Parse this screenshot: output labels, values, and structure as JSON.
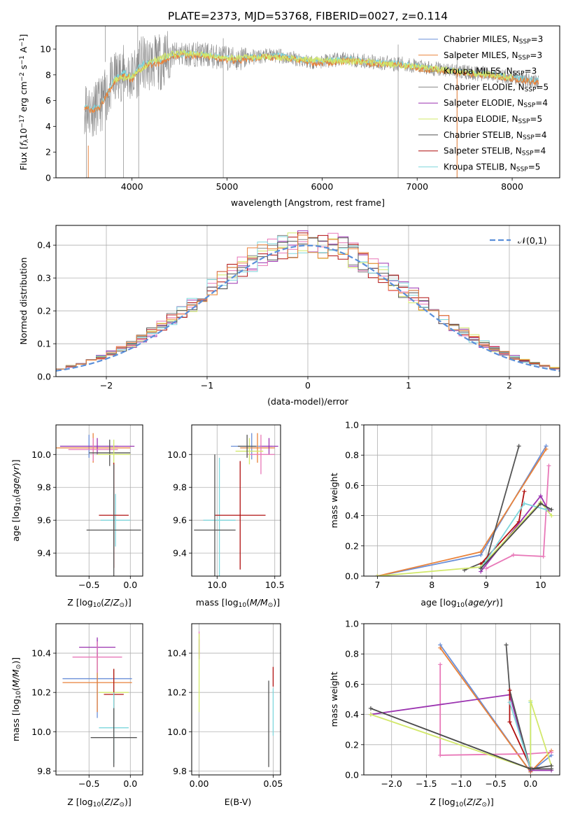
{
  "figure_title": "PLATE=2373, MJD=53768, FIBERID=0027, z=0.114",
  "colors": {
    "Chabrier MILES": "#6a8fd8",
    "Salpeter MILES": "#e9823a",
    "Kroupa MILES": "#c7772f",
    "Chabrier ELODIE": "#888888",
    "Salpeter ELODIE": "#9b33b0",
    "Kroupa ELODIE": "#d2e86a",
    "Chabrier STELIB": "#555555",
    "Salpeter STELIB": "#b01010",
    "Kroupa STELIB": "#7ed6dc",
    "pink": "#e878b8",
    "normal": "#5b8fd9"
  },
  "chart_data": [
    {
      "id": "spectrum",
      "type": "line",
      "xlabel": "wavelength [Angstrom, rest frame]",
      "ylabel": "Flux [f_λ10^-17 erg cm^-2 s^-1 A^-1]",
      "xlim": [
        3200,
        8500
      ],
      "ylim": [
        0,
        11.8
      ],
      "xticks": [
        4000,
        5000,
        6000,
        7000,
        8000
      ],
      "yticks": [
        0,
        2,
        4,
        6,
        8,
        10
      ],
      "legend_position": "right",
      "legend": [
        {
          "label": "Chabrier MILES, N_SSP=3",
          "color": "#6a8fd8"
        },
        {
          "label": "Salpeter MILES, N_SSP=3",
          "color": "#e9823a"
        },
        {
          "label": "Kroupa MILES, N_SSP=3",
          "color": "#c7772f"
        },
        {
          "label": "Chabrier ELODIE, N_SSP=5",
          "color": "#888888"
        },
        {
          "label": "Salpeter ELODIE, N_SSP=4",
          "color": "#9b33b0"
        },
        {
          "label": "Kroupa ELODIE, N_SSP=5",
          "color": "#d2e86a"
        },
        {
          "label": "Chabrier STELIB, N_SSP=4",
          "color": "#555555"
        },
        {
          "label": "Salpeter STELIB, N_SSP=4",
          "color": "#b01010"
        },
        {
          "label": "Kroupa STELIB, N_SSP=5",
          "color": "#7ed6dc"
        }
      ],
      "data_series": {
        "name": "data",
        "color": "#888888"
      },
      "model_series": [
        {
          "color": "#7ed6dc",
          "x": [
            3500,
            3560,
            3650,
            3700,
            3800,
            3900,
            4000,
            4100,
            4200,
            4300,
            4400,
            4500,
            4700,
            4900,
            5100,
            5300,
            5500,
            5700,
            5900,
            6100,
            6300,
            6500,
            6700,
            6900,
            7100,
            7300,
            7500,
            7800,
            8100,
            8280
          ],
          "y": [
            5.6,
            5.3,
            5.5,
            6.0,
            7.5,
            8.2,
            7.8,
            8.8,
            8.9,
            9.0,
            9.5,
            9.6,
            9.6,
            9.4,
            9.2,
            9.4,
            9.5,
            9.3,
            9.0,
            9.1,
            9.2,
            9.0,
            8.9,
            8.8,
            8.5,
            8.4,
            8.2,
            8.0,
            7.7,
            7.5
          ]
        },
        {
          "color": "#e9823a",
          "x": [
            3500,
            3560,
            3650,
            3700,
            3800,
            3900,
            4000,
            4100,
            4200,
            4300,
            4400,
            4500,
            4700,
            4900,
            5100,
            5300,
            5500,
            5700,
            5900,
            6100,
            6300,
            6500,
            6700,
            6900,
            7100,
            7300,
            7500,
            7800,
            8100,
            8280
          ],
          "y": [
            5.5,
            5.2,
            5.4,
            5.9,
            7.3,
            8.0,
            7.6,
            8.6,
            8.8,
            8.9,
            9.4,
            9.5,
            9.5,
            9.3,
            9.1,
            9.3,
            9.4,
            9.2,
            8.9,
            9.0,
            9.1,
            8.9,
            8.8,
            8.7,
            8.4,
            8.3,
            8.1,
            7.9,
            7.6,
            7.4
          ]
        },
        {
          "color": "#d2e86a",
          "x": [
            3800,
            4000,
            4200,
            4400,
            4600,
            4800,
            5000,
            5500,
            6000,
            6500,
            7000,
            7500,
            8000
          ],
          "y": [
            7.6,
            7.9,
            9.0,
            9.6,
            9.7,
            9.5,
            9.3,
            9.4,
            9.1,
            9.0,
            8.6,
            8.2,
            7.8
          ]
        }
      ]
    },
    {
      "id": "residuals",
      "type": "line",
      "xlabel": "(data-model)/error",
      "ylabel": "Normed distribution",
      "xlim": [
        -2.5,
        2.5
      ],
      "ylim": [
        0,
        0.46
      ],
      "xticks": [
        -2,
        -1,
        0,
        1,
        2
      ],
      "xtick_labels": [
        "−2",
        "−1",
        "0",
        "1",
        "2"
      ],
      "yticks": [
        0.0,
        0.1,
        0.2,
        0.3,
        0.4
      ],
      "ytick_labels": [
        "0.0",
        "0.1",
        "0.2",
        "0.3",
        "0.4"
      ],
      "grid": true,
      "legend_position": "top-right",
      "legend_label": "𝒩(0,1)",
      "bin_width": 0.1,
      "bin_start": -2.5,
      "hist_colors": [
        "#888888",
        "#9b33b0",
        "#d2e86a",
        "#e878b8",
        "#b01010",
        "#7ed6dc",
        "#555555",
        "#e9823a"
      ]
    },
    {
      "id": "age_vs_Z",
      "type": "scatter",
      "xlabel": "Z [log10(Z/Z⊙)]",
      "ylabel": "age [log10(age/yr)]",
      "xlim": [
        -0.9,
        0.15
      ],
      "ylim": [
        9.26,
        10.18
      ],
      "xticks": [
        -0.5,
        0.0
      ],
      "xtick_labels": [
        "−0.5",
        "0.0"
      ],
      "yticks": [
        9.4,
        9.6,
        9.8,
        10.0
      ],
      "yticks_labels": [
        "9.4",
        "9.6",
        "9.8",
        "10.0"
      ],
      "grid": true,
      "points": [
        {
          "x": -0.5,
          "xerr": 0.35,
          "y": 10.05,
          "yerr": 0.07,
          "color": "#6a8fd8"
        },
        {
          "x": -0.45,
          "xerr": 0.45,
          "y": 10.04,
          "yerr": 0.09,
          "color": "#e9823a"
        },
        {
          "x": -0.4,
          "xerr": 0.45,
          "y": 10.05,
          "yerr": 0.05,
          "color": "#9b33b0"
        },
        {
          "x": -0.45,
          "xerr": 0.3,
          "y": 10.03,
          "yerr": 0.07,
          "color": "#e878b8"
        },
        {
          "x": -0.25,
          "xerr": 0.25,
          "y": 10.01,
          "yerr": 0.08,
          "color": "#555555"
        },
        {
          "x": -0.2,
          "xerr": 0.2,
          "y": 10.0,
          "yerr": 0.09,
          "color": "#d2e86a"
        },
        {
          "x": -0.18,
          "xerr": 0.18,
          "y": 9.6,
          "yerr": 0.16,
          "color": "#7ed6dc"
        },
        {
          "x": -0.2,
          "xerr": 0.18,
          "y": 9.63,
          "yerr": 0.32,
          "color": "#b01010"
        },
        {
          "x": -0.2,
          "xerr": 0.33,
          "y": 9.54,
          "yerr": 0.4,
          "color": "#555555"
        }
      ]
    },
    {
      "id": "age_vs_mass",
      "type": "scatter",
      "xlabel": "mass [log10(M/M⊙)]",
      "ylabel": "",
      "xlim": [
        9.78,
        10.55
      ],
      "ylim": [
        9.26,
        10.18
      ],
      "xticks": [
        10.0,
        10.5
      ],
      "xtick_labels": [
        "10.0",
        "10.5"
      ],
      "yticks": [
        9.4,
        9.6,
        9.8,
        10.0
      ],
      "ytick_labels": [
        "9.4",
        "9.6",
        "9.8",
        "10.0"
      ],
      "grid": true,
      "points": [
        {
          "x": 10.3,
          "xerr": 0.18,
          "y": 10.05,
          "yerr": 0.08,
          "color": "#6a8fd8"
        },
        {
          "x": 10.35,
          "xerr": 0.15,
          "y": 10.04,
          "yerr": 0.09,
          "color": "#e9823a"
        },
        {
          "x": 10.45,
          "xerr": 0.08,
          "y": 10.05,
          "yerr": 0.05,
          "color": "#9b33b0"
        },
        {
          "x": 10.38,
          "xerr": 0.12,
          "y": 10.0,
          "yerr": 0.12,
          "color": "#e878b8"
        },
        {
          "x": 10.28,
          "xerr": 0.12,
          "y": 10.02,
          "yerr": 0.08,
          "color": "#d2e86a"
        },
        {
          "x": 10.26,
          "xerr": 0.08,
          "y": 10.05,
          "yerr": 0.07,
          "color": "#555555"
        },
        {
          "x": 10.02,
          "xerr": 0.14,
          "y": 9.6,
          "yerr": 0.38,
          "color": "#7ed6dc"
        },
        {
          "x": 10.2,
          "xerr": 0.22,
          "y": 9.63,
          "yerr": 0.33,
          "color": "#b01010"
        },
        {
          "x": 9.98,
          "xerr": 0.18,
          "y": 9.54,
          "yerr": 0.46,
          "color": "#555555"
        }
      ]
    },
    {
      "id": "weight_vs_age",
      "type": "line",
      "xlabel": "age [log10(age/yr)]",
      "ylabel": "mass weight",
      "xlim": [
        6.75,
        10.35
      ],
      "ylim": [
        0,
        1.0
      ],
      "xticks": [
        7,
        8,
        9,
        10
      ],
      "xtick_labels": [
        "7",
        "8",
        "9",
        "10"
      ],
      "yticks": [
        0,
        0.2,
        0.4,
        0.6,
        0.8,
        1.0
      ],
      "ytick_labels": [
        "0.0",
        "0.2",
        "0.4",
        "0.6",
        "0.8",
        "1.0"
      ],
      "grid": true,
      "series": [
        {
          "color": "#6a8fd8",
          "x": [
            7.0,
            8.9,
            10.1
          ],
          "y": [
            0.0,
            0.14,
            0.86
          ]
        },
        {
          "color": "#e9823a",
          "x": [
            7.0,
            8.9,
            10.1
          ],
          "y": [
            0.0,
            0.16,
            0.84
          ]
        },
        {
          "color": "#555555",
          "x": [
            8.6,
            9.0,
            9.6
          ],
          "y": [
            0.04,
            0.1,
            0.86
          ]
        },
        {
          "color": "#e878b8",
          "x": [
            9.0,
            9.5,
            10.05,
            10.15
          ],
          "y": [
            0.05,
            0.14,
            0.13,
            0.73
          ]
        },
        {
          "color": "#b01010",
          "x": [
            8.9,
            9.6,
            9.7
          ],
          "y": [
            0.08,
            0.36,
            0.56
          ]
        },
        {
          "color": "#9b33b0",
          "x": [
            8.9,
            10.0,
            10.15
          ],
          "y": [
            0.03,
            0.53,
            0.43
          ]
        },
        {
          "color": "#d2e86a",
          "x": [
            7.0,
            8.9,
            10.0,
            10.2
          ],
          "y": [
            0.0,
            0.06,
            0.49,
            0.4
          ]
        },
        {
          "color": "#7ed6dc",
          "x": [
            8.9,
            9.7,
            10.1
          ],
          "y": [
            0.05,
            0.48,
            0.44
          ]
        },
        {
          "color": "#4a4a4a",
          "x": [
            8.9,
            10.0,
            10.2
          ],
          "y": [
            0.05,
            0.48,
            0.44
          ]
        }
      ]
    },
    {
      "id": "mass_vs_Z",
      "type": "scatter",
      "xlabel": "Z [log10(Z/Z⊙)]",
      "ylabel": "mass [log10(M/M⊙)]",
      "xlim": [
        -0.9,
        0.15
      ],
      "ylim": [
        9.78,
        10.55
      ],
      "xticks": [
        -0.5,
        0.0
      ],
      "xtick_labels": [
        "−0.5",
        "0.0"
      ],
      "yticks": [
        9.8,
        10.0,
        10.2,
        10.4
      ],
      "ytick_labels": [
        "9.8",
        "10.0",
        "10.2",
        "10.4"
      ],
      "grid": true,
      "points": [
        {
          "x": -0.4,
          "xerr": 0.42,
          "y": 10.27,
          "yerr": 0.2,
          "color": "#6a8fd8"
        },
        {
          "x": -0.4,
          "xerr": 0.42,
          "y": 10.25,
          "yerr": 0.15,
          "color": "#e9823a"
        },
        {
          "x": -0.4,
          "xerr": 0.22,
          "y": 10.43,
          "yerr": 0.05,
          "color": "#9b33b0"
        },
        {
          "x": -0.4,
          "xerr": 0.3,
          "y": 10.38,
          "yerr": 0.08,
          "color": "#e878b8"
        },
        {
          "x": -0.2,
          "xerr": 0.18,
          "y": 10.2,
          "yerr": 0.12,
          "color": "#d2e86a"
        },
        {
          "x": -0.2,
          "xerr": 0.12,
          "y": 10.19,
          "yerr": 0.13,
          "color": "#b01010"
        },
        {
          "x": -0.2,
          "xerr": 0.18,
          "y": 10.02,
          "yerr": 0.18,
          "color": "#7ed6dc"
        },
        {
          "x": -0.2,
          "xerr": 0.28,
          "y": 9.97,
          "yerr": 0.15,
          "color": "#555555"
        }
      ]
    },
    {
      "id": "mass_vs_EBV",
      "type": "scatter",
      "xlabel": "E(B-V)",
      "ylabel": "",
      "xlim": [
        -0.005,
        0.055
      ],
      "ylim": [
        9.78,
        10.55
      ],
      "xticks": [
        0.0,
        0.05
      ],
      "xtick_labels": [
        "0.00",
        "0.05"
      ],
      "yticks": [
        9.8,
        10.0,
        10.2,
        10.4
      ],
      "ytick_labels": [
        "9.8",
        "10.0",
        "10.2",
        "10.4"
      ],
      "grid": true,
      "points": [
        {
          "x": 0.0,
          "y": 10.42,
          "yerr": 0.05,
          "color": "#9b33b0"
        },
        {
          "x": 0.0,
          "y": 10.45,
          "yerr": 0.06,
          "color": "#e878b8"
        },
        {
          "x": 0.0,
          "y": 10.3,
          "yerr": 0.2,
          "color": "#d2e86a"
        },
        {
          "x": 0.047,
          "y": 10.04,
          "yerr": 0.22,
          "color": "#555555"
        },
        {
          "x": 0.05,
          "y": 10.1,
          "yerr": 0.12,
          "color": "#7ed6dc"
        },
        {
          "x": 0.05,
          "y": 10.28,
          "yerr": 0.05,
          "color": "#b01010"
        }
      ]
    },
    {
      "id": "weight_vs_Z",
      "type": "line",
      "xlabel": "Z [log10(Z/Z⊙)]",
      "ylabel": "mass weight",
      "xlim": [
        -2.4,
        0.42
      ],
      "ylim": [
        0,
        1.0
      ],
      "xticks": [
        -2.0,
        -1.5,
        -1.0,
        -0.5,
        0.0
      ],
      "xtick_labels": [
        "−2.0",
        "−1.5",
        "−1.0",
        "−0.5",
        "0.0"
      ],
      "yticks": [
        0,
        0.2,
        0.4,
        0.6,
        0.8,
        1.0
      ],
      "ytick_labels": [
        "0.0",
        "0.2",
        "0.4",
        "0.6",
        "0.8",
        "1.0"
      ],
      "grid": true,
      "series": [
        {
          "color": "#6a8fd8",
          "x": [
            -1.3,
            0.0,
            0.3
          ],
          "y": [
            0.86,
            0.02,
            0.13
          ]
        },
        {
          "color": "#e9823a",
          "x": [
            -1.3,
            0.0,
            0.3
          ],
          "y": [
            0.84,
            0.02,
            0.16
          ]
        },
        {
          "color": "#e878b8",
          "x": [
            -1.3,
            -1.3,
            0.0,
            0.3
          ],
          "y": [
            0.73,
            0.13,
            0.14,
            0.15
          ]
        },
        {
          "color": "#9b33b0",
          "x": [
            -2.3,
            -0.3,
            0.0,
            0.3
          ],
          "y": [
            0.4,
            0.53,
            0.03,
            0.03
          ]
        },
        {
          "color": "#555555",
          "x": [
            -0.35,
            -0.3,
            0.0,
            0.3
          ],
          "y": [
            0.86,
            0.56,
            0.04,
            0.04
          ]
        },
        {
          "color": "#b01010",
          "x": [
            -0.3,
            -0.3,
            0.0
          ],
          "y": [
            0.56,
            0.35,
            0.05
          ]
        },
        {
          "color": "#7ed6dc",
          "x": [
            -0.3,
            0.0,
            0.0
          ],
          "y": [
            0.48,
            0.04,
            0.48
          ]
        },
        {
          "color": "#d2e86a",
          "x": [
            -2.3,
            0.0,
            0.0,
            0.3
          ],
          "y": [
            0.4,
            0.04,
            0.49,
            0.06
          ]
        },
        {
          "color": "#4a4a4a",
          "x": [
            -2.3,
            0.0,
            0.3
          ],
          "y": [
            0.44,
            0.04,
            0.06
          ]
        }
      ]
    }
  ]
}
